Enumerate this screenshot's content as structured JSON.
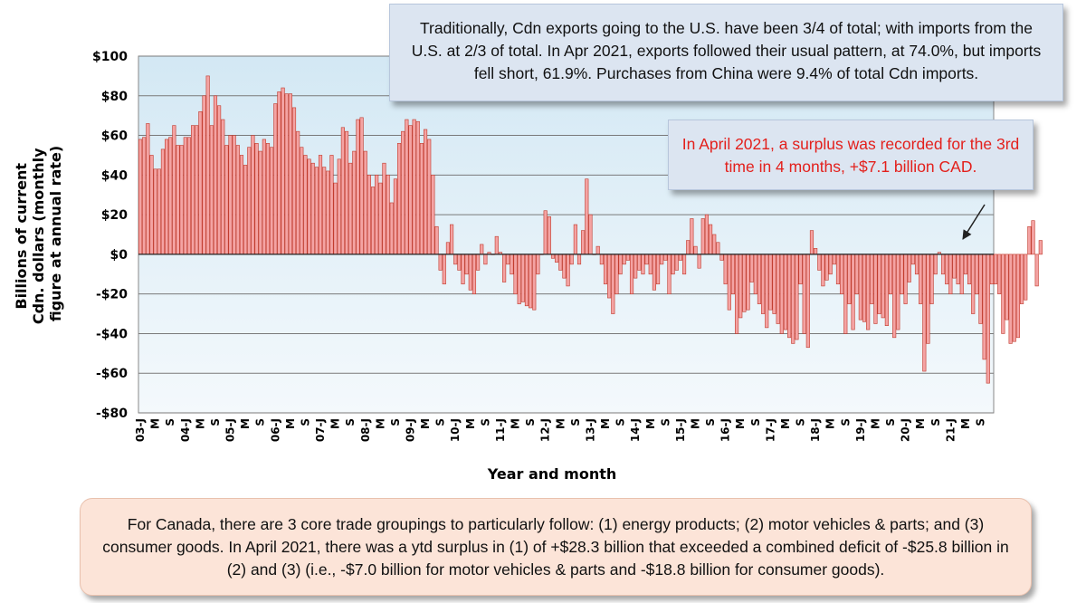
{
  "notes": {
    "top": "Traditionally, Cdn exports going to the U.S. have been 3/4 of total; with imports from the U.S. at 2/3 of total. In Apr 2021, exports followed their usual pattern, at 74.0%, but imports fell short, 61.9%. Purchases from China were 9.4% of total Cdn imports.",
    "surplus": "In April 2021, a surplus was recorded  for the 3rd time in 4 months, +$7.1 billion CAD.",
    "bottom": "For Canada, there are 3 core trade groupings to particularly follow: (1) energy products; (2) motor vehicles & parts; and (3) consumer goods. In April 2021, there was a ytd surplus in (1) of +$28.3 billion that exceeded a combined deficit of    -$25.8 billion in (2) and (3) (i.e., -$7.0 billion for motor vehicles & parts and -$18.8 billion for consumer goods)."
  },
  "colors": {
    "bar_fill": "#f4a3a3",
    "bar_stroke": "#c0392b",
    "plot_bg_top": "#d3e8f4",
    "plot_bg_bottom": "#f4f9fc",
    "annotation_red": "#e3201c"
  },
  "chart_data": {
    "type": "bar",
    "title": "",
    "xlabel": "Year and month",
    "ylabel": "Billions of current Cdn. dollars (monthly figure at annual rate)",
    "ylim": [
      -80,
      100
    ],
    "y_ticks": [
      -80,
      -60,
      -40,
      -20,
      0,
      20,
      40,
      60,
      80,
      100
    ],
    "y_tick_labels": [
      "-$80",
      "-$60",
      "-$40",
      "-$20",
      "$0",
      "$20",
      "$40",
      "$60",
      "$80",
      "$100"
    ],
    "grid": true,
    "x_start": "2003-01",
    "x_end": "2021-12",
    "x_ticks": [
      {
        "month": "2003-01",
        "label": "03-J"
      },
      {
        "month": "2003-05",
        "label": "M"
      },
      {
        "month": "2003-09",
        "label": "S"
      },
      {
        "month": "2004-01",
        "label": "04-J"
      },
      {
        "month": "2004-05",
        "label": "M"
      },
      {
        "month": "2004-09",
        "label": "S"
      },
      {
        "month": "2005-01",
        "label": "05-J"
      },
      {
        "month": "2005-05",
        "label": "M"
      },
      {
        "month": "2005-09",
        "label": "S"
      },
      {
        "month": "2006-01",
        "label": "06-J"
      },
      {
        "month": "2006-05",
        "label": "M"
      },
      {
        "month": "2006-09",
        "label": "S"
      },
      {
        "month": "2007-01",
        "label": "07-J"
      },
      {
        "month": "2007-05",
        "label": "M"
      },
      {
        "month": "2007-09",
        "label": "S"
      },
      {
        "month": "2008-01",
        "label": "08-J"
      },
      {
        "month": "2008-05",
        "label": "M"
      },
      {
        "month": "2008-09",
        "label": "S"
      },
      {
        "month": "2009-01",
        "label": "09-J"
      },
      {
        "month": "2009-05",
        "label": "M"
      },
      {
        "month": "2009-09",
        "label": "S"
      },
      {
        "month": "2010-01",
        "label": "10-J"
      },
      {
        "month": "2010-05",
        "label": "M"
      },
      {
        "month": "2010-09",
        "label": "S"
      },
      {
        "month": "2011-01",
        "label": "11-J"
      },
      {
        "month": "2011-05",
        "label": "M"
      },
      {
        "month": "2011-09",
        "label": "S"
      },
      {
        "month": "2012-01",
        "label": "12-J"
      },
      {
        "month": "2012-05",
        "label": "M"
      },
      {
        "month": "2012-09",
        "label": "S"
      },
      {
        "month": "2013-01",
        "label": "13-J"
      },
      {
        "month": "2013-05",
        "label": "M"
      },
      {
        "month": "2013-09",
        "label": "S"
      },
      {
        "month": "2014-01",
        "label": "14-J"
      },
      {
        "month": "2014-05",
        "label": "M"
      },
      {
        "month": "2014-09",
        "label": "S"
      },
      {
        "month": "2015-01",
        "label": "15-J"
      },
      {
        "month": "2015-05",
        "label": "M"
      },
      {
        "month": "2015-09",
        "label": "S"
      },
      {
        "month": "2016-01",
        "label": "16-J"
      },
      {
        "month": "2016-05",
        "label": "M"
      },
      {
        "month": "2016-09",
        "label": "S"
      },
      {
        "month": "2017-01",
        "label": "17-J"
      },
      {
        "month": "2017-05",
        "label": "M"
      },
      {
        "month": "2017-09",
        "label": "S"
      },
      {
        "month": "2018-01",
        "label": "18-J"
      },
      {
        "month": "2018-05",
        "label": "M"
      },
      {
        "month": "2018-09",
        "label": "S"
      },
      {
        "month": "2019-01",
        "label": "19-J"
      },
      {
        "month": "2019-05",
        "label": "M"
      },
      {
        "month": "2019-09",
        "label": "S"
      },
      {
        "month": "2020-01",
        "label": "20-J"
      },
      {
        "month": "2020-05",
        "label": "M"
      },
      {
        "month": "2020-09",
        "label": "S"
      },
      {
        "month": "2021-01",
        "label": "21-J"
      },
      {
        "month": "2021-05",
        "label": "M"
      },
      {
        "month": "2021-09",
        "label": "S"
      }
    ],
    "series": [
      {
        "first_month": "2003-01",
        "values": [
          58,
          59,
          66,
          50,
          43,
          43,
          53,
          58,
          59,
          65,
          55,
          55,
          59,
          59,
          65,
          65,
          72,
          80,
          90,
          65,
          80,
          75,
          68,
          55,
          60,
          60,
          55,
          50,
          45,
          54,
          60,
          56,
          52,
          58,
          56,
          54,
          76,
          82,
          84,
          81,
          81,
          74,
          62,
          54,
          50,
          48,
          46,
          44,
          50,
          44,
          42,
          50,
          36,
          48,
          64,
          62,
          46,
          52,
          68,
          69,
          52,
          40,
          34,
          40,
          36,
          46,
          40,
          26,
          38,
          56,
          62,
          68,
          65,
          68,
          67,
          56,
          63,
          58,
          40,
          14,
          -8,
          -15,
          6,
          15,
          -5,
          -8,
          -15,
          -10,
          -18,
          -20,
          -8,
          5,
          -5,
          1,
          0,
          9,
          1,
          -14,
          -5,
          -10,
          -20,
          -25,
          -24,
          -26,
          -27,
          -28,
          -10,
          0,
          22,
          19,
          -2,
          -4,
          -8,
          -12,
          -16,
          -5,
          15,
          -5,
          12,
          38,
          20,
          0,
          4,
          -5,
          -15,
          -22,
          -30,
          -20,
          -10,
          -5,
          -3,
          -20,
          -12,
          -8,
          -10,
          -5,
          -10,
          -18,
          -15,
          -5,
          -3,
          -20,
          -10,
          -8,
          -3,
          -10,
          7,
          18,
          4,
          -7,
          18,
          20,
          15,
          10,
          6,
          -3,
          -15,
          -28,
          -20,
          -40,
          -32,
          -29,
          -28,
          -14,
          -20,
          -25,
          -30,
          -37,
          -28,
          -30,
          -35,
          -40,
          -38,
          -42,
          -45,
          -43,
          -15,
          -40,
          -47,
          12,
          3,
          -8,
          -16,
          -13,
          -10,
          -5,
          -15,
          -20,
          -40,
          -25,
          -38,
          -20,
          -33,
          -34,
          -38,
          -25,
          -35,
          -30,
          -32,
          -36,
          -20,
          -42,
          -38,
          -20,
          -25,
          -14,
          -5,
          -10,
          -25,
          -59,
          -45,
          -25,
          -10,
          1,
          -10,
          -15,
          -20,
          -12,
          -15,
          -20,
          -10,
          -15,
          -30,
          -20,
          -35,
          -53,
          -65,
          -15,
          -15,
          -20,
          -40,
          -33,
          -45,
          -44,
          -42,
          -25,
          -23,
          14,
          17,
          -16,
          7
        ]
      }
    ]
  }
}
